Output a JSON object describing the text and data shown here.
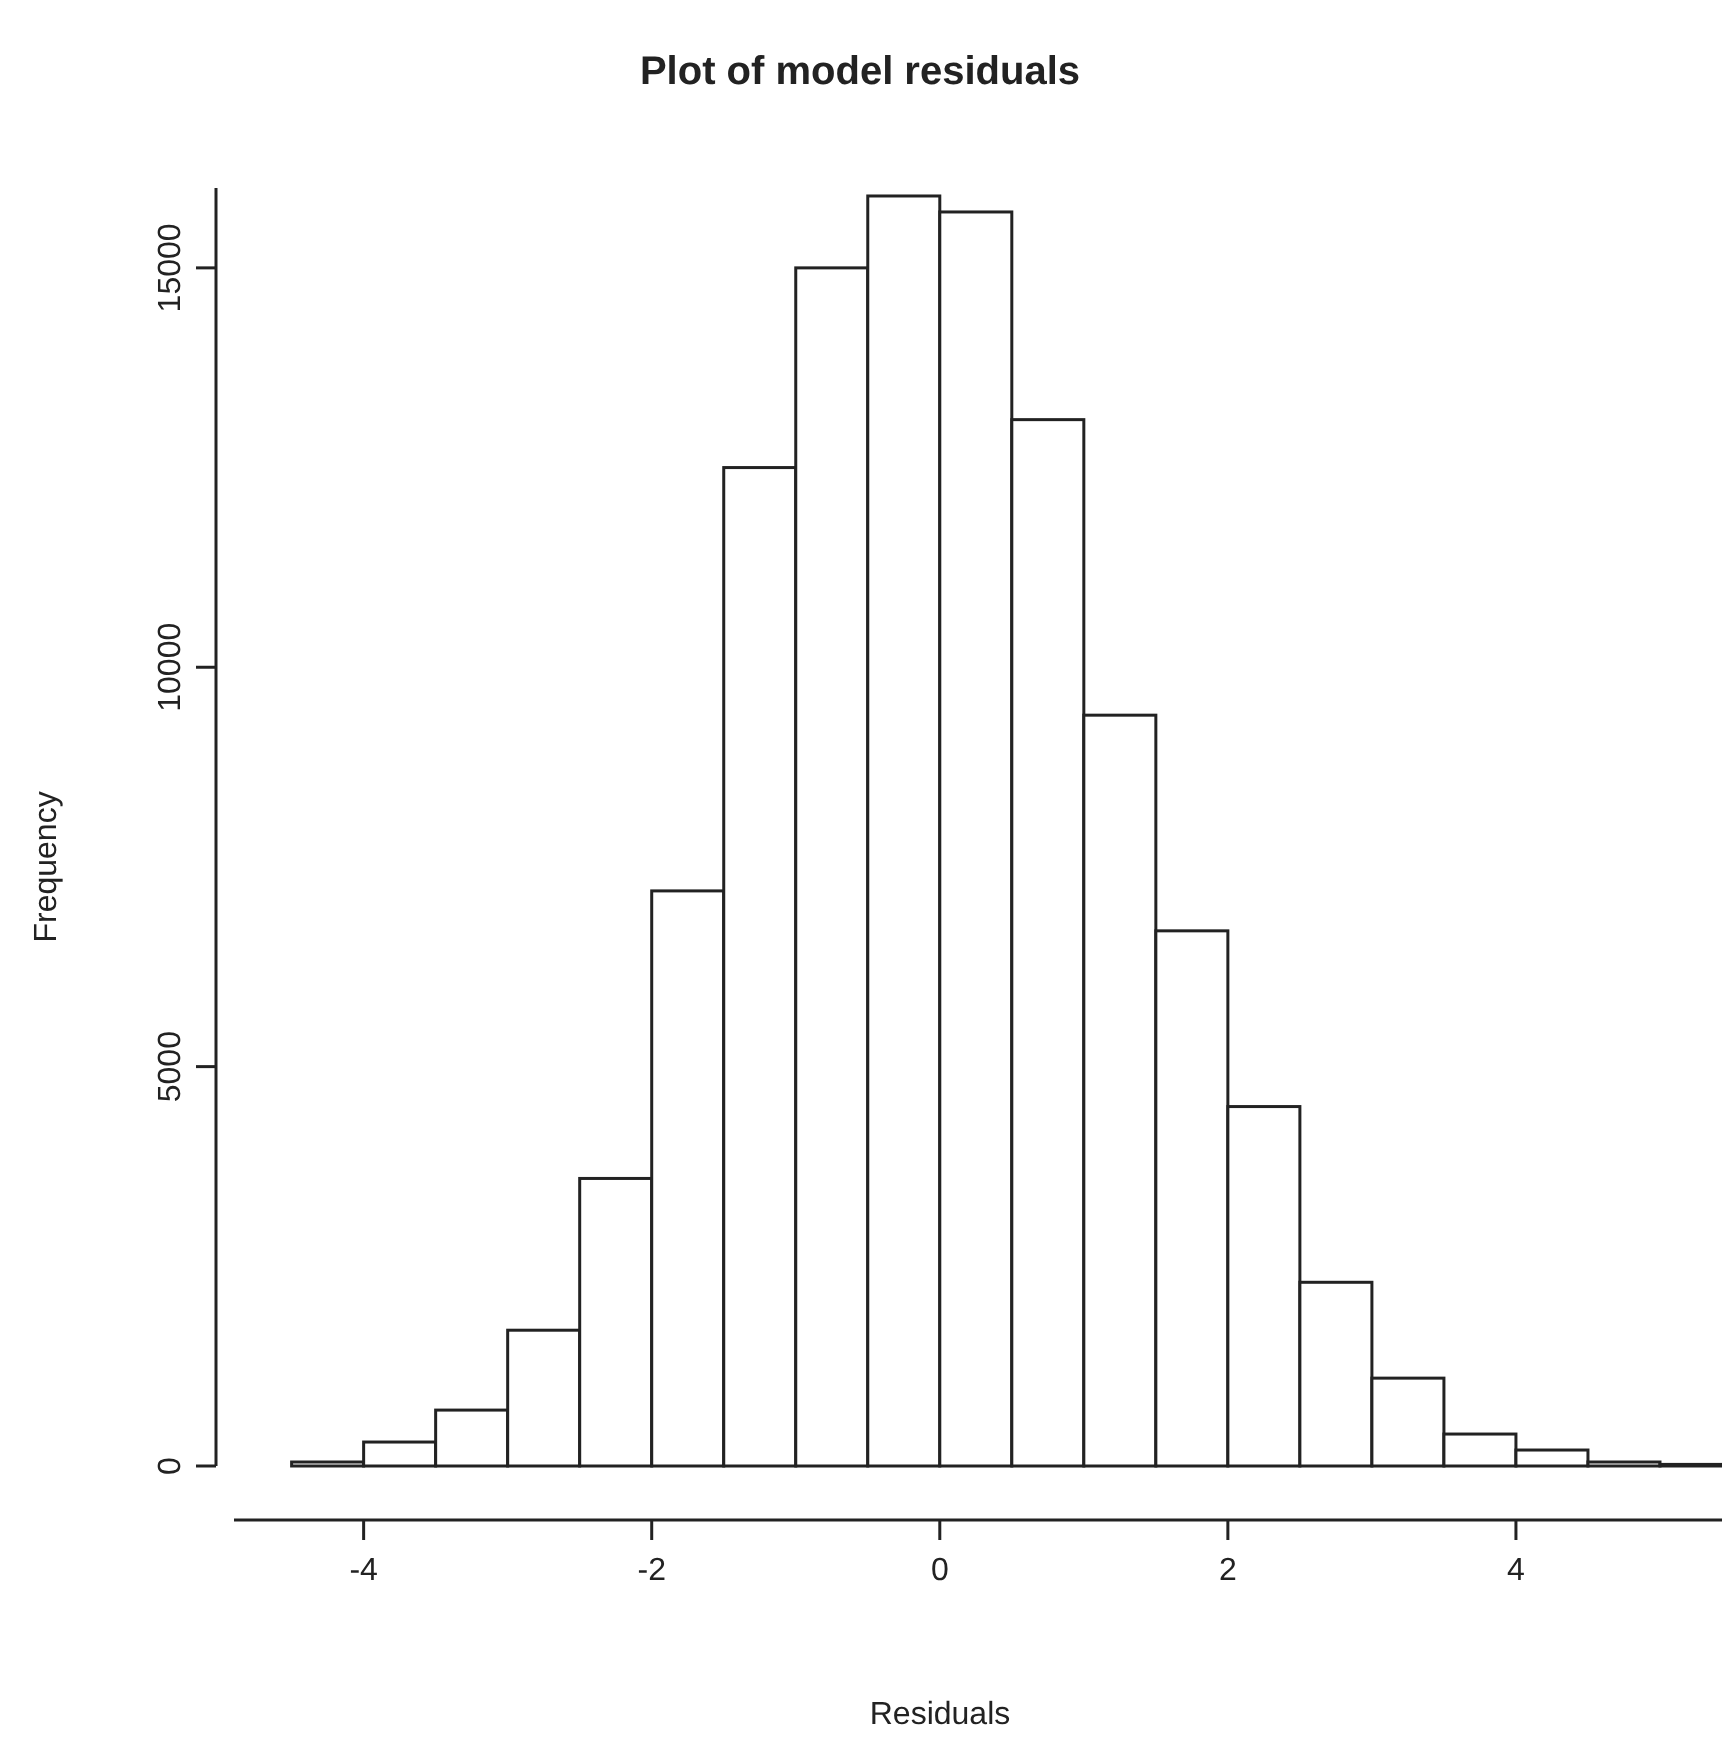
{
  "chart_data": {
    "type": "histogram",
    "title": "Plot of model residuals",
    "xlabel": "Residuals",
    "ylabel": "Frequency",
    "bins": [
      -4.5,
      -4,
      -3.5,
      -3,
      -2.5,
      -2,
      -1.5,
      -1,
      -0.5,
      0,
      0.5,
      1,
      1.5,
      2,
      2.5,
      3,
      3.5,
      4,
      4.5,
      5,
      5.5
    ],
    "values": [
      50,
      300,
      700,
      1700,
      3600,
      7200,
      12500,
      15000,
      15900,
      15700,
      13100,
      9400,
      6700,
      4500,
      2300,
      1100,
      400,
      200,
      50,
      20
    ],
    "color": "#ffffff",
    "xlim": [
      -4.9,
      5.5
    ],
    "xticks": [
      -4,
      -2,
      0,
      2,
      4
    ],
    "ylim": [
      0,
      16000
    ],
    "yticks": [
      0,
      5000,
      10000,
      15000
    ],
    "grid": false
  }
}
